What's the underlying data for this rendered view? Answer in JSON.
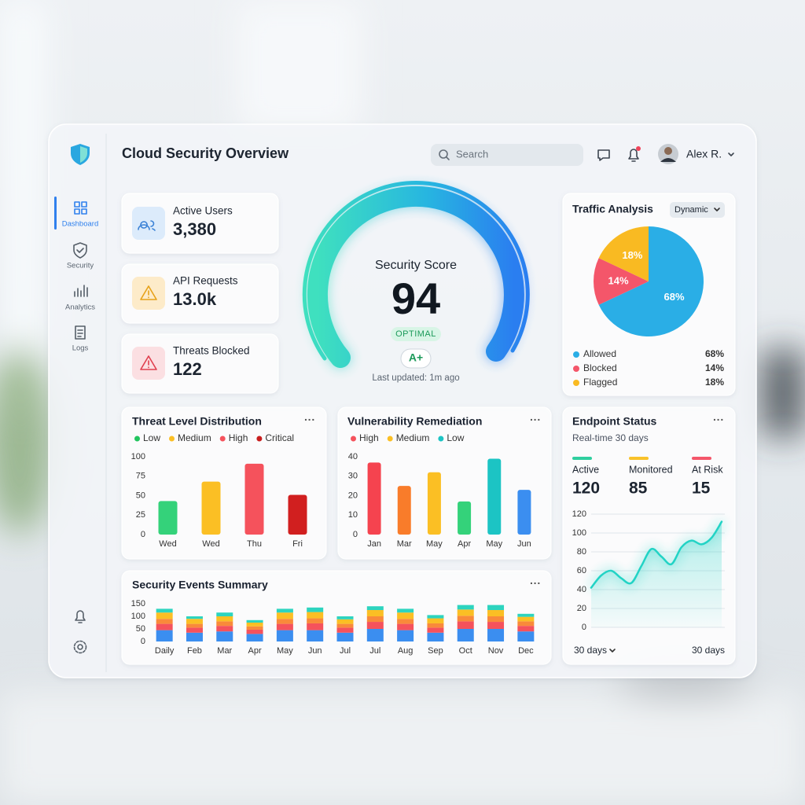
{
  "sidebar": {
    "items": [
      "Dashboard",
      "Security",
      "Analytics",
      "Logs"
    ]
  },
  "header": {
    "title": "Cloud Security Overview",
    "search_placeholder": "Search",
    "user": "Alex R."
  },
  "stats": [
    {
      "label": "Active Users",
      "value": "3,380"
    },
    {
      "label": "API Requests",
      "value": "13.0k"
    },
    {
      "label": "Threats Blocked",
      "value": "122"
    }
  ],
  "score": {
    "label": "Security Score",
    "value": "94",
    "status": "OPTIMAL",
    "grade": "A+",
    "updated": "Last updated: 1m ago"
  },
  "chart_data": [
    {
      "type": "pie",
      "title": "Traffic Analysis",
      "control": "Dynamic",
      "categories": [
        "Allowed",
        "Blocked",
        "Flagged"
      ],
      "values": [
        68,
        14,
        18
      ],
      "value_labels": [
        "68%",
        "14%",
        "18%"
      ],
      "colors": [
        "#2aaee6",
        "#f4566a",
        "#f9ba22"
      ]
    },
    {
      "type": "bar",
      "title": "Threat Level Distribution",
      "legend": [
        {
          "name": "Low",
          "color": "#22c55e"
        },
        {
          "name": "Medium",
          "color": "#fbbf24"
        },
        {
          "name": "High",
          "color": "#f5525c"
        },
        {
          "name": "Critical",
          "color": "#c81e1e"
        }
      ],
      "categories": [
        "Wed",
        "Wed",
        "Thu",
        "Fri"
      ],
      "values": [
        43,
        68,
        91,
        51
      ],
      "colors": [
        "#34d27a",
        "#fbbf24",
        "#f5525c",
        "#d11f1f"
      ],
      "ylim": [
        0,
        100
      ],
      "yticks": [
        0,
        25,
        50,
        75,
        100
      ],
      "grid": false
    },
    {
      "type": "bar",
      "title": "Vulnerability Remediation",
      "legend": [
        {
          "name": "High",
          "color": "#f5525c"
        },
        {
          "name": "Medium",
          "color": "#fbbf24"
        },
        {
          "name": "Low",
          "color": "#1cc4c4"
        }
      ],
      "categories": [
        "Jan",
        "Mar",
        "May",
        "Apr",
        "May",
        "Jun"
      ],
      "values": [
        37,
        25,
        32,
        17,
        39,
        23
      ],
      "colors": [
        "#f5434f",
        "#f97c2a",
        "#fbbf24",
        "#34d27a",
        "#1cc4c4",
        "#3b8ef0"
      ],
      "ylim": [
        0,
        40
      ],
      "yticks": [
        0,
        10,
        20,
        30,
        40
      ],
      "grid": false
    },
    {
      "type": "stacked_bar",
      "title": "Security Events Summary",
      "categories": [
        "Daily",
        "Feb",
        "Mar",
        "Apr",
        "May",
        "Jun",
        "Jul",
        "Jul",
        "Aug",
        "Sep",
        "Oct",
        "Nov",
        "Dec"
      ],
      "series": [
        {
          "color": "#3b8ef0",
          "values": [
            45,
            35,
            40,
            30,
            45,
            45,
            35,
            50,
            45,
            35,
            50,
            50,
            40
          ]
        },
        {
          "color": "#f5525c",
          "values": [
            25,
            20,
            22,
            17,
            25,
            27,
            20,
            28,
            25,
            20,
            30,
            28,
            22
          ]
        },
        {
          "color": "#f98a3a",
          "values": [
            20,
            15,
            18,
            13,
            20,
            20,
            15,
            22,
            20,
            17,
            22,
            22,
            18
          ]
        },
        {
          "color": "#fbbf24",
          "values": [
            25,
            20,
            20,
            15,
            25,
            25,
            18,
            25,
            25,
            20,
            25,
            25,
            18
          ]
        },
        {
          "color": "#2dd4bf",
          "values": [
            15,
            10,
            15,
            10,
            15,
            18,
            12,
            15,
            15,
            13,
            18,
            20,
            12
          ]
        }
      ],
      "ylim": [
        0,
        150
      ],
      "yticks": [
        0,
        50,
        100,
        150
      ],
      "grid": false
    },
    {
      "type": "area",
      "title": "Endpoint Status",
      "subtitle": "Real-time 30 days",
      "stats": [
        {
          "label": "Active",
          "value": "120",
          "color": "#2fcf9f"
        },
        {
          "label": "Monitored",
          "value": "85",
          "color": "#f9c22a"
        },
        {
          "label": "At Risk",
          "value": "15",
          "color": "#f4566a"
        }
      ],
      "values": [
        42,
        55,
        60,
        52,
        47,
        65,
        83,
        75,
        67,
        85,
        92,
        88,
        95,
        112
      ],
      "color": "#22d3c5",
      "ylim": [
        0,
        120
      ],
      "yticks": [
        0,
        20,
        40,
        60,
        80,
        100,
        120
      ],
      "grid": true,
      "range_select": "30 days",
      "range_label": "30 days"
    }
  ]
}
